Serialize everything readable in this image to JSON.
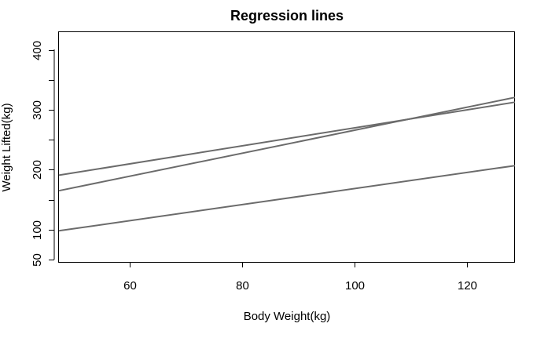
{
  "chart_data": {
    "type": "line",
    "title": "Regression lines",
    "xlabel": "Body Weight(kg)",
    "ylabel": "Weight Lifted(kg)",
    "xlim": [
      47.5,
      128.5
    ],
    "ylim": [
      46,
      430
    ],
    "x_ticks": [
      60,
      80,
      100,
      120
    ],
    "x_tick_labels": [
      "60",
      "80",
      "100",
      "120"
    ],
    "y_ticks": [
      50,
      100,
      150,
      200,
      250,
      300,
      350,
      400
    ],
    "y_tick_labels": [
      "50",
      "100",
      "",
      "200",
      "",
      "300",
      "",
      "400"
    ],
    "grid": false,
    "series": [
      {
        "x": [
          47.5,
          128.5
        ],
        "y": [
          191,
          313
        ]
      },
      {
        "x": [
          47.5,
          128.5
        ],
        "y": [
          165,
          321
        ]
      },
      {
        "x": [
          47.5,
          128.5
        ],
        "y": [
          98,
          207
        ]
      }
    ],
    "line_color": "#6b6b6b"
  }
}
